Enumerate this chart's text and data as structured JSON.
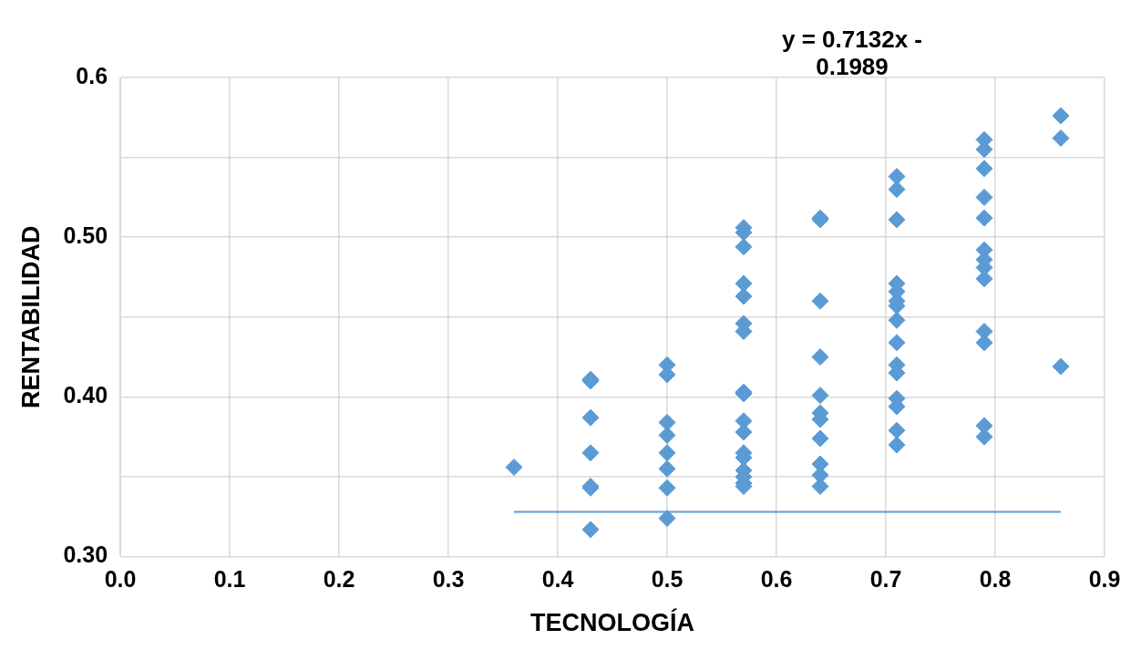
{
  "chart_data": {
    "type": "scatter",
    "xlabel": "TECNOLOGÍA",
    "ylabel": "RENTABILIDAD",
    "annotations": [
      "y = 0.7132x - 0.1989"
    ],
    "xlim": [
      0,
      0.9
    ],
    "xticks": [
      {
        "value": 0,
        "label": "0.0"
      },
      0.1,
      0.2,
      0.3,
      0.4,
      0.5,
      0.6,
      0.7,
      0.8,
      0.9
    ],
    "ylim": [
      0.3,
      0.6
    ],
    "yticks": [
      {
        "value": 0.3,
        "label": "0.30"
      },
      {
        "value": 0.35,
        "label": null
      },
      {
        "value": 0.4,
        "label": "0.40"
      },
      {
        "value": 0.45,
        "label": null
      },
      {
        "value": 0.5,
        "label": "0.50"
      },
      {
        "value": 0.55,
        "label": null
      },
      0.6
    ],
    "grid": true,
    "marker": "diamond",
    "series": [
      {
        "type": "scatter",
        "color": "#5b9bd5",
        "x": [
          0.36,
          0.43,
          0.43,
          0.43,
          0.43,
          0.43,
          0.43,
          0.43,
          0.5,
          0.5,
          0.5,
          0.5,
          0.5,
          0.5,
          0.5,
          0.5,
          0.57,
          0.57,
          0.57,
          0.57,
          0.57,
          0.57,
          0.57,
          0.57,
          0.57,
          0.57,
          0.57,
          0.57,
          0.57,
          0.57,
          0.57,
          0.57,
          0.57,
          0.64,
          0.64,
          0.64,
          0.64,
          0.64,
          0.64,
          0.64,
          0.64,
          0.64,
          0.64,
          0.64,
          0.71,
          0.71,
          0.71,
          0.71,
          0.71,
          0.71,
          0.71,
          0.71,
          0.71,
          0.71,
          0.71,
          0.71,
          0.71,
          0.71,
          0.71,
          0.79,
          0.79,
          0.79,
          0.79,
          0.79,
          0.79,
          0.79,
          0.79,
          0.79,
          0.79,
          0.79,
          0.79,
          0.79,
          0.86,
          0.86,
          0.86
        ],
        "values": [
          0.356,
          0.411,
          0.41,
          0.387,
          0.365,
          0.344,
          0.343,
          0.317,
          0.42,
          0.414,
          0.384,
          0.376,
          0.365,
          0.355,
          0.343,
          0.324,
          0.506,
          0.503,
          0.494,
          0.471,
          0.463,
          0.446,
          0.441,
          0.403,
          0.402,
          0.385,
          0.378,
          0.365,
          0.362,
          0.354,
          0.35,
          0.346,
          0.344,
          0.512,
          0.511,
          0.46,
          0.425,
          0.401,
          0.39,
          0.386,
          0.374,
          0.358,
          0.351,
          0.344,
          0.538,
          0.53,
          0.511,
          0.471,
          0.466,
          0.46,
          0.457,
          0.448,
          0.434,
          0.42,
          0.415,
          0.399,
          0.394,
          0.379,
          0.37,
          0.561,
          0.555,
          0.543,
          0.525,
          0.512,
          0.492,
          0.486,
          0.481,
          0.474,
          0.441,
          0.434,
          0.382,
          0.375,
          0.576,
          0.562,
          0.419
        ]
      },
      {
        "type": "line",
        "color": "#5b9bd5",
        "marker": "none",
        "x": [
          0.36,
          0.86
        ],
        "values": [
          0.328,
          0.328
        ]
      }
    ]
  }
}
